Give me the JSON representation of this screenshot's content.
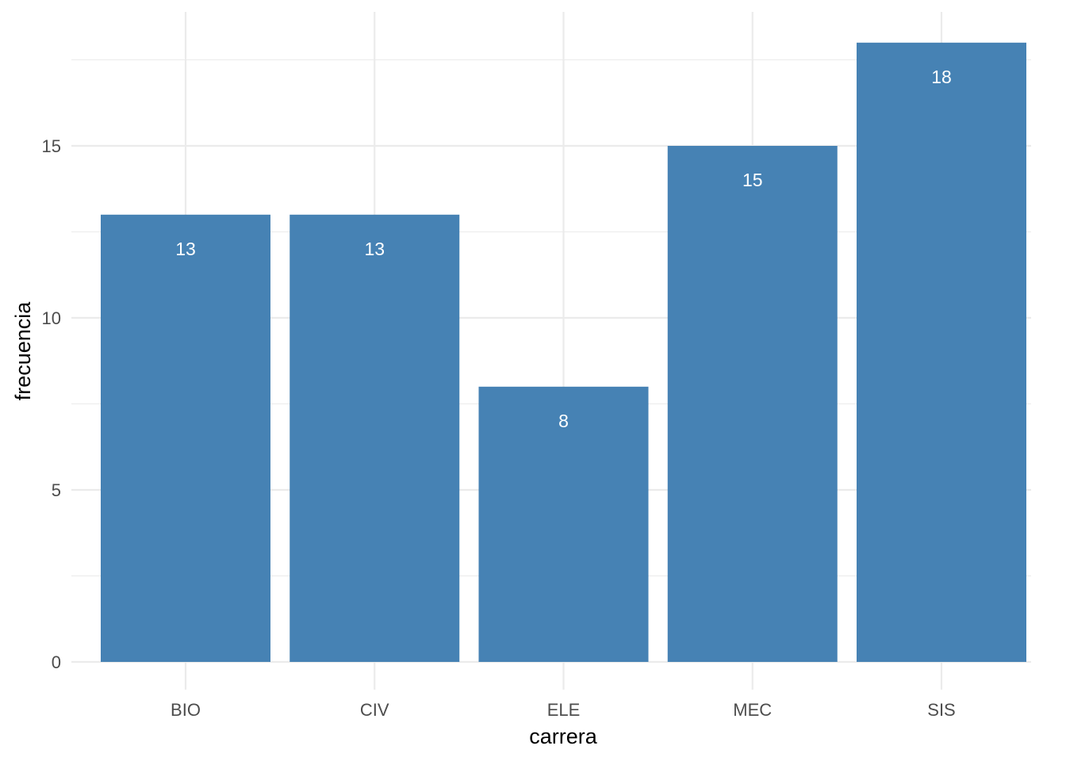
{
  "chart_data": {
    "type": "bar",
    "categories": [
      "BIO",
      "CIV",
      "ELE",
      "MEC",
      "SIS"
    ],
    "values": [
      13,
      13,
      8,
      15,
      18
    ],
    "data_labels": [
      "13",
      "13",
      "8",
      "15",
      "18"
    ],
    "title": "",
    "xlabel": "carrera",
    "ylabel": "frecuencia",
    "ylim": [
      0,
      18.9
    ],
    "yticks": [
      0,
      5,
      10,
      15
    ],
    "yminor": [
      2.5,
      7.5,
      12.5,
      17.5
    ],
    "grid": true,
    "legend": "none",
    "bar_color": "#4682b4"
  }
}
